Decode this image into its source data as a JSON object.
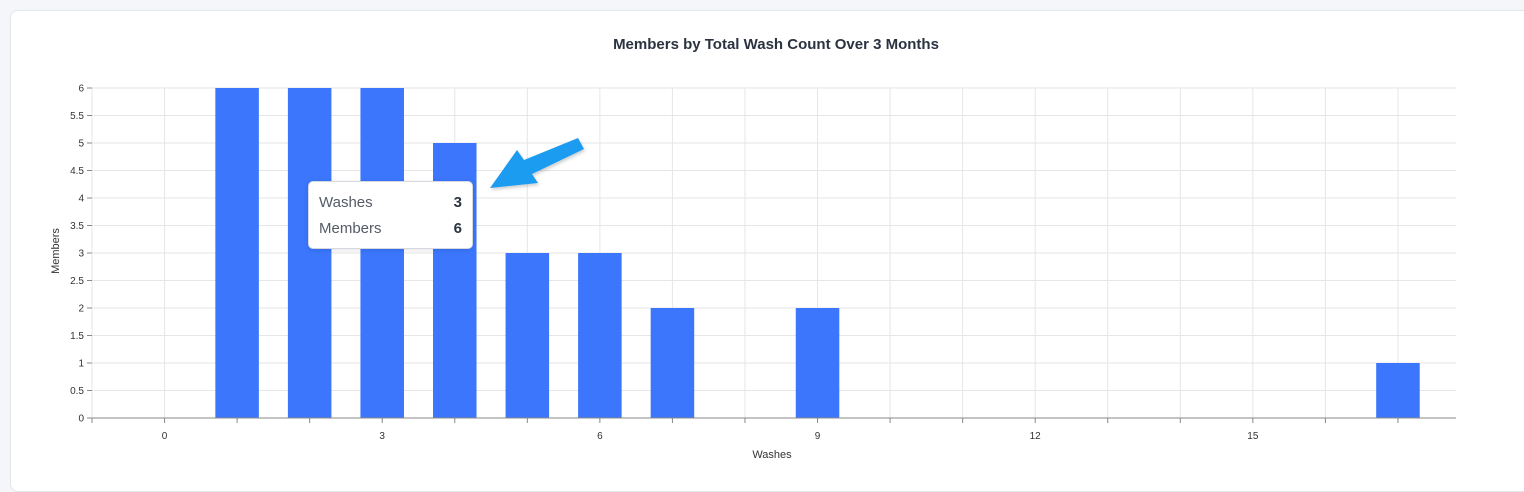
{
  "chart_data": {
    "type": "bar",
    "title": "Members by Total Wash Count Over 3 Months",
    "xlabel": "Washes",
    "ylabel": "Members",
    "x": [
      1,
      2,
      3,
      4,
      5,
      6,
      7,
      9,
      17
    ],
    "values": [
      6,
      6,
      6,
      5,
      3,
      3,
      2,
      2,
      1
    ],
    "xlim": [
      -1,
      17.8
    ],
    "ylim": [
      0,
      6
    ],
    "x_ticks": [
      0,
      3,
      6,
      9,
      12,
      15
    ],
    "y_ticks": [
      0,
      0.5,
      1,
      1.5,
      2,
      2.5,
      3,
      3.5,
      4,
      4.5,
      5,
      5.5,
      6
    ],
    "grid": true,
    "legend": "none",
    "bar_color": "#3b76fc"
  },
  "tooltip": {
    "rows": [
      {
        "label": "Washes",
        "value": "3"
      },
      {
        "label": "Members",
        "value": "6"
      }
    ]
  },
  "annotation": {
    "arrow_color": "#1e9cf0",
    "arrow_icon": "arrow-pointer-icon"
  }
}
